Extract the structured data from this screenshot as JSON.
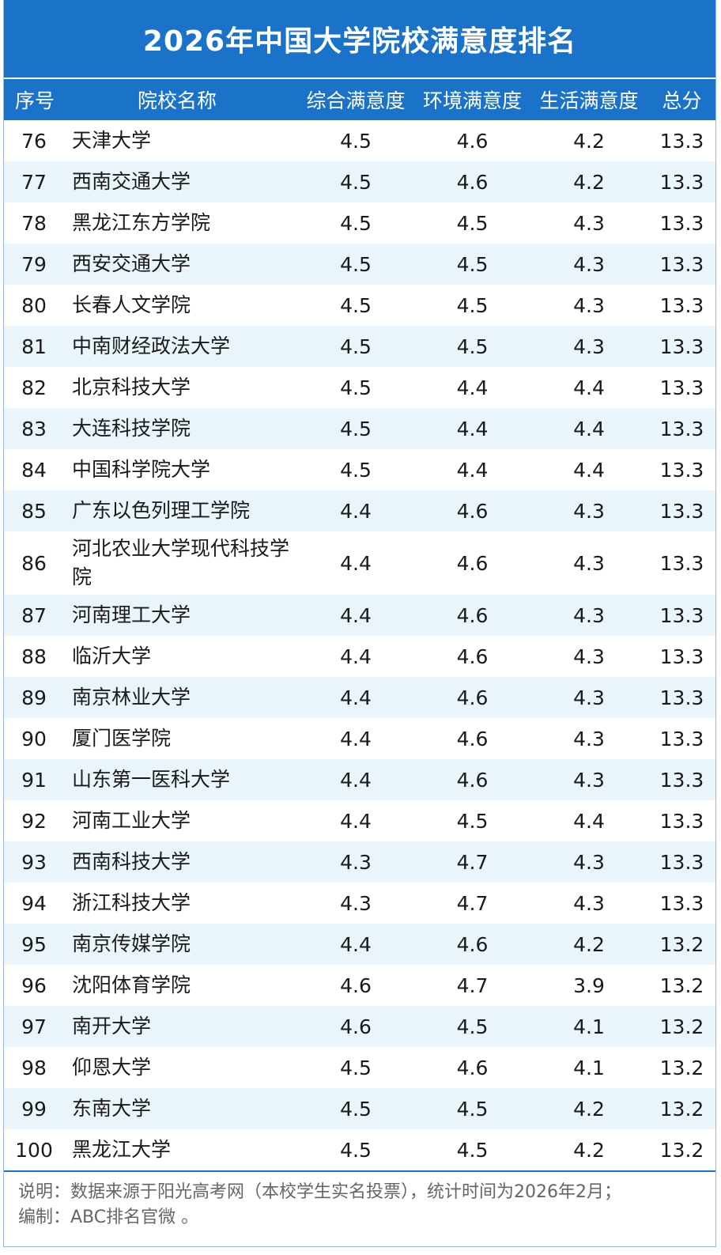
{
  "title": "2026年中国大学院校满意度排名",
  "columns": {
    "rank": "序号",
    "name": "院校名称",
    "overall": "综合满意度",
    "environment": "环境满意度",
    "life": "生活满意度",
    "total": "总分"
  },
  "rows": [
    {
      "rank": "76",
      "name": "天津大学",
      "overall": "4.5",
      "environment": "4.6",
      "life": "4.2",
      "total": "13.3"
    },
    {
      "rank": "77",
      "name": "西南交通大学",
      "overall": "4.5",
      "environment": "4.6",
      "life": "4.2",
      "total": "13.3"
    },
    {
      "rank": "78",
      "name": "黑龙江东方学院",
      "overall": "4.5",
      "environment": "4.5",
      "life": "4.3",
      "total": "13.3"
    },
    {
      "rank": "79",
      "name": "西安交通大学",
      "overall": "4.5",
      "environment": "4.5",
      "life": "4.3",
      "total": "13.3"
    },
    {
      "rank": "80",
      "name": "长春人文学院",
      "overall": "4.5",
      "environment": "4.5",
      "life": "4.3",
      "total": "13.3"
    },
    {
      "rank": "81",
      "name": "中南财经政法大学",
      "overall": "4.5",
      "environment": "4.5",
      "life": "4.3",
      "total": "13.3"
    },
    {
      "rank": "82",
      "name": "北京科技大学",
      "overall": "4.5",
      "environment": "4.4",
      "life": "4.4",
      "total": "13.3"
    },
    {
      "rank": "83",
      "name": "大连科技学院",
      "overall": "4.5",
      "environment": "4.4",
      "life": "4.4",
      "total": "13.3"
    },
    {
      "rank": "84",
      "name": "中国科学院大学",
      "overall": "4.5",
      "environment": "4.4",
      "life": "4.4",
      "total": "13.3"
    },
    {
      "rank": "85",
      "name": "广东以色列理工学院",
      "overall": "4.4",
      "environment": "4.6",
      "life": "4.3",
      "total": "13.3"
    },
    {
      "rank": "86",
      "name": "河北农业大学现代科技学院",
      "overall": "4.4",
      "environment": "4.6",
      "life": "4.3",
      "total": "13.3"
    },
    {
      "rank": "87",
      "name": "河南理工大学",
      "overall": "4.4",
      "environment": "4.6",
      "life": "4.3",
      "total": "13.3"
    },
    {
      "rank": "88",
      "name": "临沂大学",
      "overall": "4.4",
      "environment": "4.6",
      "life": "4.3",
      "total": "13.3"
    },
    {
      "rank": "89",
      "name": "南京林业大学",
      "overall": "4.4",
      "environment": "4.6",
      "life": "4.3",
      "total": "13.3"
    },
    {
      "rank": "90",
      "name": "厦门医学院",
      "overall": "4.4",
      "environment": "4.6",
      "life": "4.3",
      "total": "13.3"
    },
    {
      "rank": "91",
      "name": "山东第一医科大学",
      "overall": "4.4",
      "environment": "4.6",
      "life": "4.3",
      "total": "13.3"
    },
    {
      "rank": "92",
      "name": "河南工业大学",
      "overall": "4.4",
      "environment": "4.5",
      "life": "4.4",
      "total": "13.3"
    },
    {
      "rank": "93",
      "name": "西南科技大学",
      "overall": "4.3",
      "environment": "4.7",
      "life": "4.3",
      "total": "13.3"
    },
    {
      "rank": "94",
      "name": "浙江科技大学",
      "overall": "4.3",
      "environment": "4.7",
      "life": "4.3",
      "total": "13.3"
    },
    {
      "rank": "95",
      "name": "南京传媒学院",
      "overall": "4.4",
      "environment": "4.6",
      "life": "4.2",
      "total": "13.2"
    },
    {
      "rank": "96",
      "name": "沈阳体育学院",
      "overall": "4.6",
      "environment": "4.7",
      "life": "3.9",
      "total": "13.2"
    },
    {
      "rank": "97",
      "name": "南开大学",
      "overall": "4.6",
      "environment": "4.5",
      "life": "4.1",
      "total": "13.2"
    },
    {
      "rank": "98",
      "name": "仰恩大学",
      "overall": "4.5",
      "environment": "4.6",
      "life": "4.1",
      "total": "13.2"
    },
    {
      "rank": "99",
      "name": "东南大学",
      "overall": "4.5",
      "environment": "4.5",
      "life": "4.2",
      "total": "13.2"
    },
    {
      "rank": "100",
      "name": "黑龙江大学",
      "overall": "4.5",
      "environment": "4.5",
      "life": "4.2",
      "total": "13.2"
    }
  ],
  "footer": {
    "note": "说明：数据来源于阳光高考网（本校学生实名投票），统计时间为2026年2月；",
    "credit": "编制：ABC排名官微 。"
  },
  "colors": {
    "header_bg": "#1a73c8",
    "stripe_bg": "#eaf5fb",
    "footer_text": "#666666"
  }
}
